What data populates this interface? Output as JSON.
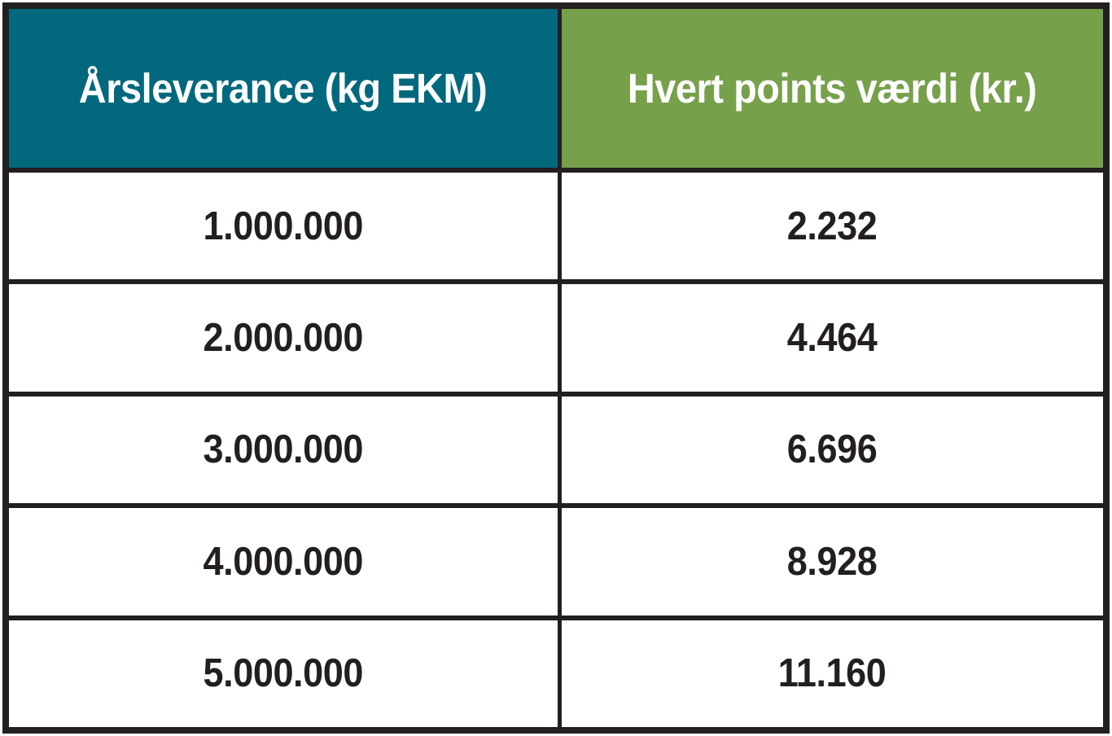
{
  "colors": {
    "header_col1_bg": "#02687E",
    "header_col2_bg": "#77A04B",
    "border": "#231F20",
    "header_text": "#FFFFFF",
    "body_text": "#231F20",
    "row_bg": "#FFFFFF"
  },
  "table": {
    "headers": [
      {
        "label": "Årsleverance (kg EKM)"
      },
      {
        "label": "Hvert points værdi (kr.)"
      }
    ],
    "rows": [
      {
        "cells": [
          "1.000.000",
          "2.232"
        ]
      },
      {
        "cells": [
          "2.000.000",
          "4.464"
        ]
      },
      {
        "cells": [
          "3.000.000",
          "6.696"
        ]
      },
      {
        "cells": [
          "4.000.000",
          "8.928"
        ]
      },
      {
        "cells": [
          "5.000.000",
          "11.160"
        ]
      }
    ]
  },
  "chart_data": {
    "type": "table",
    "columns": [
      "Årsleverance (kg EKM)",
      "Hvert points værdi (kr.)"
    ],
    "rows": [
      [
        "1.000.000",
        "2.232"
      ],
      [
        "2.000.000",
        "4.464"
      ],
      [
        "3.000.000",
        "6.696"
      ],
      [
        "4.000.000",
        "8.928"
      ],
      [
        "5.000.000",
        "11.160"
      ]
    ],
    "numeric_values": {
      "arsleverance_kg_ekm": [
        1000000,
        2000000,
        3000000,
        4000000,
        5000000
      ],
      "hvert_points_vaerdi_kr": [
        2232,
        4464,
        6696,
        8928,
        11160
      ]
    }
  }
}
